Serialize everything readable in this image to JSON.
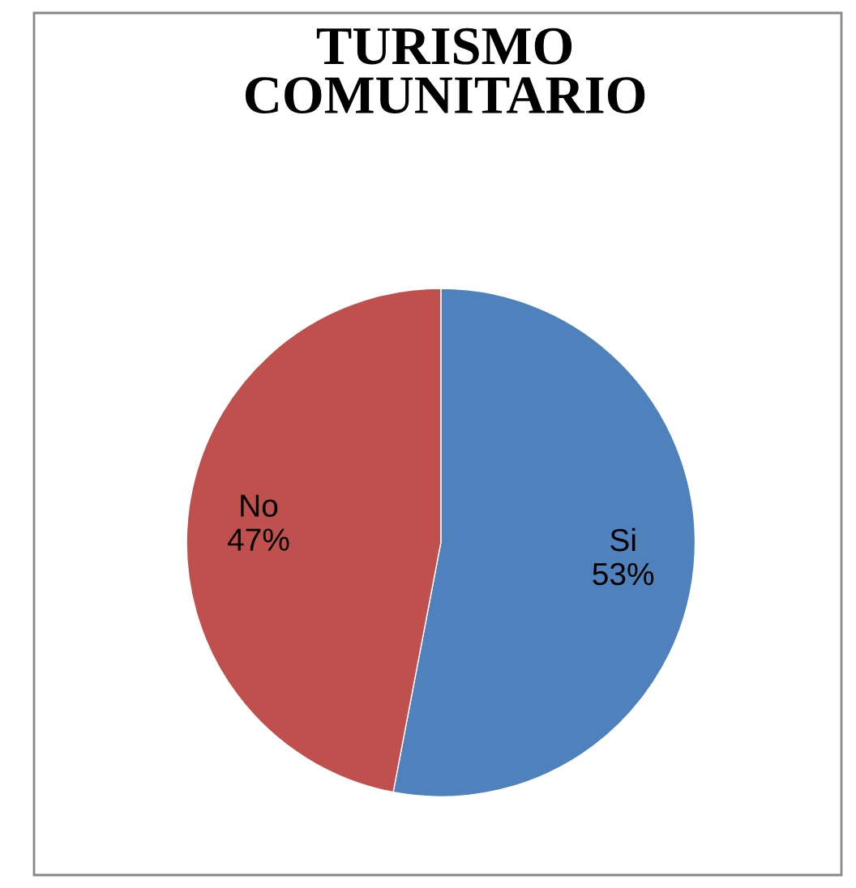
{
  "chart_data": {
    "type": "pie",
    "title": "TURISMO\nCOMUNITARIO",
    "categories": [
      "Si",
      "No"
    ],
    "values": [
      53,
      47
    ],
    "value_labels": [
      "53%",
      "47%"
    ],
    "colors": [
      "#4f81bd",
      "#c0504d"
    ],
    "legend": false
  }
}
